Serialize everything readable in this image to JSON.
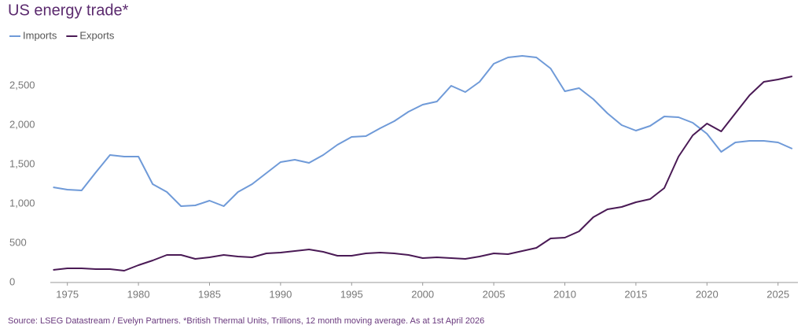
{
  "chart_data": {
    "type": "line",
    "title": "US energy trade*",
    "footnote": "Source: LSEG Datastream / Evelyn Partners. *British Thermal Units, Trillions, 12 month moving average. As at 1st April 2026",
    "x": [
      1974,
      1975,
      1976,
      1977,
      1978,
      1979,
      1980,
      1981,
      1982,
      1983,
      1984,
      1985,
      1986,
      1987,
      1988,
      1989,
      1990,
      1991,
      1992,
      1993,
      1994,
      1995,
      1996,
      1997,
      1998,
      1999,
      2000,
      2001,
      2002,
      2003,
      2004,
      2005,
      2006,
      2007,
      2008,
      2009,
      2010,
      2011,
      2012,
      2013,
      2014,
      2015,
      2016,
      2017,
      2018,
      2019,
      2020,
      2021,
      2022,
      2023,
      2024,
      2025,
      2026
    ],
    "series": [
      {
        "name": "Imports",
        "color": "#6f9ad8",
        "values": [
          1210,
          1180,
          1170,
          1400,
          1620,
          1600,
          1600,
          1250,
          1150,
          970,
          980,
          1040,
          970,
          1150,
          1250,
          1390,
          1530,
          1560,
          1520,
          1620,
          1750,
          1850,
          1860,
          1960,
          2050,
          2170,
          2260,
          2300,
          2500,
          2420,
          2550,
          2780,
          2860,
          2880,
          2860,
          2720,
          2430,
          2470,
          2330,
          2150,
          2000,
          1930,
          1990,
          2110,
          2100,
          2030,
          1890,
          1660,
          1780,
          1800,
          1800,
          1780,
          1700
        ]
      },
      {
        "name": "Exports",
        "color": "#4a1a55",
        "values": [
          160,
          180,
          180,
          170,
          170,
          150,
          220,
          280,
          350,
          350,
          300,
          320,
          350,
          330,
          320,
          370,
          380,
          400,
          420,
          390,
          340,
          340,
          370,
          380,
          370,
          350,
          310,
          320,
          310,
          300,
          330,
          370,
          360,
          400,
          440,
          560,
          570,
          650,
          830,
          930,
          960,
          1020,
          1060,
          1200,
          1600,
          1870,
          2020,
          1920,
          2150,
          2380,
          2550,
          2580,
          2620
        ]
      }
    ],
    "xlim": [
      1973.8,
      2026.4
    ],
    "xticks": [
      1975,
      1980,
      1985,
      1990,
      1995,
      2000,
      2005,
      2010,
      2015,
      2020,
      2025
    ],
    "ylim": [
      0,
      3000
    ],
    "yticks": [
      0,
      500,
      {
        "value": 1000,
        "label": "1,000"
      },
      {
        "value": 1500,
        "label": "1,500"
      },
      {
        "value": 2000,
        "label": "2,000"
      },
      {
        "value": 2500,
        "label": "2,500"
      }
    ],
    "legend": "top-left"
  }
}
